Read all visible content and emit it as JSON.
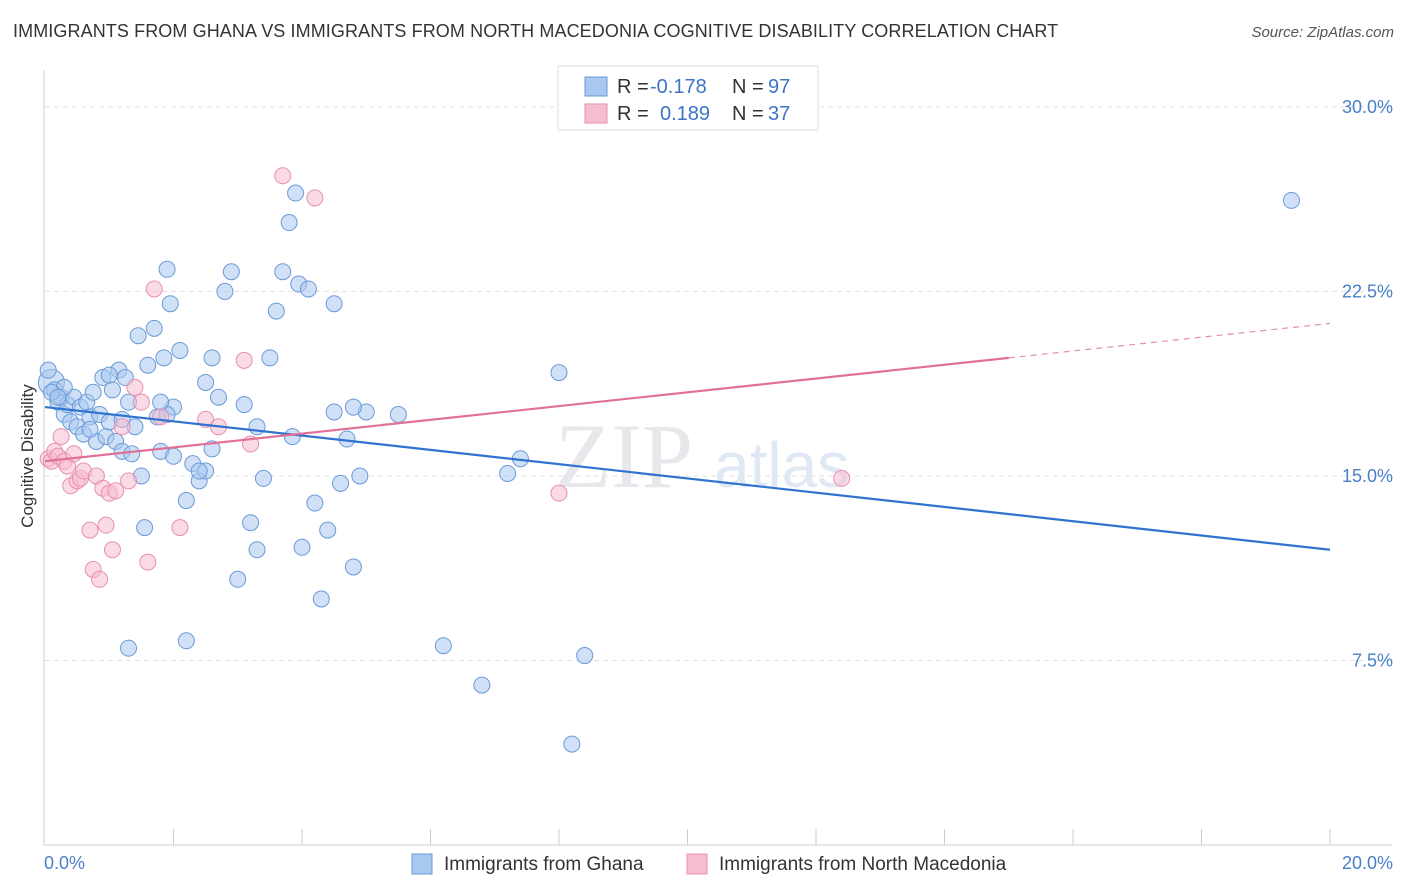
{
  "title": "IMMIGRANTS FROM GHANA VS IMMIGRANTS FROM NORTH MACEDONIA COGNITIVE DISABILITY CORRELATION CHART",
  "source": "Source: ZipAtlas.com",
  "watermark": {
    "zip": "ZIP",
    "atlas": "atlas"
  },
  "colors": {
    "blue_fill": "#a9c8f0",
    "blue_stroke": "#6a9ad8",
    "blue_line": "#2f72cf",
    "pink_fill": "#f6bcd0",
    "pink_stroke": "#e88fb0",
    "pink_line": "#e07098",
    "tick_text": "#4a7fc9",
    "grid": "#e0e0e0"
  },
  "legend": {
    "rows": [
      {
        "r_label": "R =",
        "r_value": "-0.178",
        "n_label": "N =",
        "n_value": "97"
      },
      {
        "r_label": "R =",
        "r_value": "0.189",
        "n_label": "N =",
        "n_value": "37"
      }
    ]
  },
  "chart_data": {
    "type": "scatter",
    "title": "IMMIGRANTS FROM GHANA VS IMMIGRANTS FROM NORTH MACEDONIA COGNITIVE DISABILITY CORRELATION CHART",
    "xlabel": "",
    "ylabel": "Cognitive Disability",
    "xlim": [
      0,
      20
    ],
    "ylim": [
      0,
      31.5
    ],
    "x_tick_labels": [
      "0.0%",
      "20.0%"
    ],
    "y_ticks": [
      7.5,
      15.0,
      22.5,
      30.0
    ],
    "y_tick_labels": [
      "7.5%",
      "15.0%",
      "22.5%",
      "30.0%"
    ],
    "grid": true,
    "legend_position": "bottom",
    "series": [
      {
        "name": "Immigrants from Ghana",
        "color": "#a9c8f0",
        "trendline": {
          "x": [
            0,
            20
          ],
          "y": [
            17.8,
            12.0
          ]
        },
        "points": [
          [
            0.1,
            18.8
          ],
          [
            0.15,
            18.5
          ],
          [
            0.2,
            18.0
          ],
          [
            0.25,
            18.2
          ],
          [
            0.3,
            17.5
          ],
          [
            0.35,
            17.9
          ],
          [
            0.4,
            17.2
          ],
          [
            0.45,
            18.2
          ],
          [
            0.5,
            17.0
          ],
          [
            0.55,
            17.8
          ],
          [
            0.6,
            16.7
          ],
          [
            0.65,
            18.0
          ],
          [
            0.7,
            17.4
          ],
          [
            0.75,
            18.4
          ],
          [
            0.8,
            16.4
          ],
          [
            0.85,
            17.5
          ],
          [
            0.9,
            19.0
          ],
          [
            0.95,
            16.6
          ],
          [
            1.0,
            17.2
          ],
          [
            1.05,
            18.5
          ],
          [
            1.1,
            16.4
          ],
          [
            1.15,
            19.3
          ],
          [
            1.2,
            16.0
          ],
          [
            1.25,
            19.0
          ],
          [
            1.3,
            18.0
          ],
          [
            1.35,
            15.9
          ],
          [
            1.4,
            17.0
          ],
          [
            1.45,
            20.7
          ],
          [
            1.5,
            15.0
          ],
          [
            1.55,
            12.9
          ],
          [
            1.6,
            19.5
          ],
          [
            1.7,
            21.0
          ],
          [
            1.75,
            17.4
          ],
          [
            1.8,
            16.0
          ],
          [
            1.85,
            19.8
          ],
          [
            1.9,
            23.4
          ],
          [
            1.95,
            22.0
          ],
          [
            2.0,
            17.8
          ],
          [
            2.1,
            20.1
          ],
          [
            2.2,
            14.0
          ],
          [
            2.3,
            15.5
          ],
          [
            2.4,
            14.8
          ],
          [
            2.5,
            15.2
          ],
          [
            2.6,
            19.8
          ],
          [
            2.7,
            18.2
          ],
          [
            2.8,
            22.5
          ],
          [
            2.9,
            23.3
          ],
          [
            3.0,
            10.8
          ],
          [
            3.1,
            17.9
          ],
          [
            3.2,
            13.1
          ],
          [
            3.3,
            12.0
          ],
          [
            3.4,
            14.9
          ],
          [
            3.5,
            19.8
          ],
          [
            3.6,
            21.7
          ],
          [
            3.7,
            23.3
          ],
          [
            3.8,
            25.3
          ],
          [
            3.85,
            16.6
          ],
          [
            3.9,
            26.5
          ],
          [
            3.95,
            22.8
          ],
          [
            4.0,
            12.1
          ],
          [
            4.1,
            22.6
          ],
          [
            4.2,
            13.9
          ],
          [
            4.3,
            10.0
          ],
          [
            4.4,
            12.8
          ],
          [
            4.5,
            22.0
          ],
          [
            4.6,
            14.7
          ],
          [
            4.7,
            16.5
          ],
          [
            4.8,
            11.3
          ],
          [
            4.9,
            15.0
          ],
          [
            5.0,
            17.6
          ],
          [
            6.2,
            8.1
          ],
          [
            6.8,
            6.5
          ],
          [
            7.2,
            15.1
          ],
          [
            7.4,
            15.7
          ],
          [
            8.0,
            19.2
          ],
          [
            8.2,
            4.1
          ],
          [
            8.4,
            7.7
          ],
          [
            1.9,
            17.5
          ],
          [
            2.0,
            15.8
          ],
          [
            1.2,
            17.3
          ],
          [
            0.3,
            18.6
          ],
          [
            1.0,
            19.1
          ],
          [
            2.5,
            18.8
          ],
          [
            3.3,
            17.0
          ],
          [
            0.7,
            16.9
          ],
          [
            1.3,
            8.0
          ],
          [
            2.2,
            8.3
          ],
          [
            2.4,
            15.2
          ],
          [
            1.8,
            18.0
          ],
          [
            2.6,
            16.1
          ],
          [
            4.8,
            17.8
          ],
          [
            5.5,
            17.5
          ],
          [
            19.4,
            26.2
          ],
          [
            0.05,
            19.3
          ],
          [
            0.1,
            18.4
          ],
          [
            0.2,
            18.2
          ],
          [
            4.5,
            17.6
          ]
        ]
      },
      {
        "name": "Immigrants from North Macedonia",
        "color": "#f6bcd0",
        "trendline": {
          "x": [
            0,
            15
          ],
          "y": [
            15.6,
            19.8
          ]
        },
        "trendline_dashed": {
          "x": [
            15,
            20
          ],
          "y": [
            19.8,
            21.2
          ]
        },
        "points": [
          [
            0.05,
            15.7
          ],
          [
            0.1,
            15.6
          ],
          [
            0.15,
            16.0
          ],
          [
            0.2,
            15.8
          ],
          [
            0.25,
            16.6
          ],
          [
            0.3,
            15.6
          ],
          [
            0.35,
            15.4
          ],
          [
            0.4,
            14.6
          ],
          [
            0.45,
            15.9
          ],
          [
            0.5,
            14.8
          ],
          [
            0.55,
            14.9
          ],
          [
            0.6,
            15.2
          ],
          [
            0.7,
            12.8
          ],
          [
            0.75,
            11.2
          ],
          [
            0.8,
            15.0
          ],
          [
            0.85,
            10.8
          ],
          [
            0.9,
            14.5
          ],
          [
            0.95,
            13.0
          ],
          [
            1.0,
            14.3
          ],
          [
            1.05,
            12.0
          ],
          [
            1.1,
            14.4
          ],
          [
            1.2,
            17.0
          ],
          [
            1.3,
            14.8
          ],
          [
            1.4,
            18.6
          ],
          [
            1.5,
            18.0
          ],
          [
            1.6,
            11.5
          ],
          [
            1.7,
            22.6
          ],
          [
            1.8,
            17.4
          ],
          [
            2.1,
            12.9
          ],
          [
            2.5,
            17.3
          ],
          [
            2.7,
            17.0
          ],
          [
            3.1,
            19.7
          ],
          [
            3.2,
            16.3
          ],
          [
            3.7,
            27.2
          ],
          [
            4.2,
            26.3
          ],
          [
            8.0,
            14.3
          ],
          [
            12.4,
            14.9
          ]
        ]
      }
    ]
  },
  "bottom_legend": {
    "items": [
      {
        "label": "Immigrants from Ghana"
      },
      {
        "label": "Immigrants from North Macedonia"
      }
    ]
  }
}
